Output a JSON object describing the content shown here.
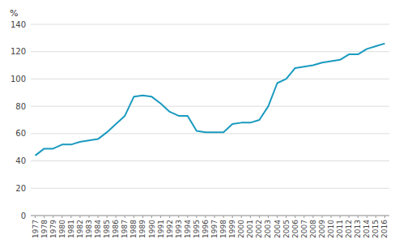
{
  "chart_data": {
    "type": "line",
    "ylabel": "%",
    "x": [
      1977,
      1978,
      1979,
      1980,
      1981,
      1982,
      1983,
      1984,
      1985,
      1986,
      1987,
      1988,
      1989,
      1990,
      1991,
      1992,
      1993,
      1994,
      1995,
      1996,
      1997,
      1998,
      1999,
      2000,
      2001,
      2002,
      2003,
      2004,
      2005,
      2006,
      2007,
      2008,
      2009,
      2010,
      2011,
      2012,
      2013,
      2014,
      2015,
      2016
    ],
    "values": [
      44,
      49,
      49,
      52,
      52,
      54,
      55,
      56,
      61,
      67,
      73,
      87,
      88,
      87,
      82,
      76,
      73,
      73,
      62,
      61,
      61,
      61,
      67,
      68,
      68,
      70,
      80,
      97,
      100,
      108,
      109,
      110,
      112,
      113,
      114,
      118,
      118,
      122,
      124,
      126
    ],
    "color": "#1a9abf",
    "xlim": [
      1976.5,
      2016.5
    ],
    "xticks": [
      1977,
      1978,
      1979,
      1980,
      1981,
      1982,
      1983,
      1984,
      1985,
      1986,
      1987,
      1988,
      1989,
      1990,
      1991,
      1992,
      1993,
      1994,
      1995,
      1996,
      1997,
      1998,
      1999,
      2000,
      2001,
      2002,
      2003,
      2004,
      2005,
      2006,
      2007,
      2008,
      2009,
      2010,
      2011,
      2012,
      2013,
      2014,
      2015,
      2016
    ],
    "ylim": [
      0,
      140
    ],
    "yticks": [
      0,
      20,
      40,
      60,
      80,
      100,
      120,
      140
    ],
    "grid": true
  }
}
